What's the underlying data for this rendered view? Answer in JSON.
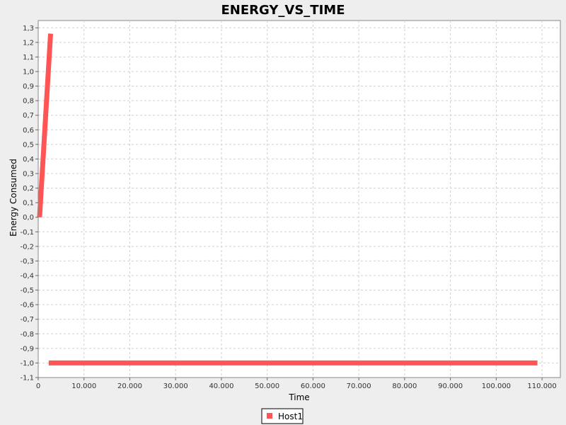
{
  "chart_data": {
    "type": "line",
    "title": "ENERGY_VS_TIME",
    "xlabel": "Time",
    "ylabel": "Energy Consumed",
    "xlim": [
      0,
      114000
    ],
    "ylim": [
      -1.1,
      1.35
    ],
    "x_ticks": [
      0,
      10000,
      20000,
      30000,
      40000,
      50000,
      60000,
      70000,
      80000,
      90000,
      100000,
      110000
    ],
    "x_tick_labels": [
      "0",
      "10.000",
      "20.000",
      "30.000",
      "40.000",
      "50.000",
      "60.000",
      "70.000",
      "80.000",
      "90.000",
      "100.000",
      "110.000"
    ],
    "y_ticks": [
      1.3,
      1.2,
      1.1,
      1.0,
      0.9,
      0.8,
      0.7,
      0.6,
      0.5,
      0.4,
      0.3,
      0.2,
      0.1,
      0.0,
      -0.1,
      -0.2,
      -0.3,
      -0.4,
      -0.5,
      -0.6,
      -0.7,
      -0.8,
      -0.9,
      -1.0,
      -1.1
    ],
    "y_tick_labels": [
      "1,3",
      "1,2",
      "1,1",
      "1,0",
      "0,9",
      "0,8",
      "0,7",
      "0,6",
      "0,5",
      "0,4",
      "0,3",
      "0,2",
      "0,1",
      "0,0",
      "-0,1",
      "-0,2",
      "-0,3",
      "-0,4",
      "-0,5",
      "-0,6",
      "-0,7",
      "-0,8",
      "-0,9",
      "-1,0",
      "-1,1"
    ],
    "grid": true,
    "legend_position": "bottom-center",
    "series": [
      {
        "name": "Host1",
        "color": "#ff5555",
        "segments": [
          [
            [
              300,
              0.0
            ],
            [
              2700,
              1.26
            ]
          ],
          [
            [
              2300,
              -1.0
            ],
            [
              109000,
              -1.0
            ]
          ]
        ]
      }
    ]
  }
}
